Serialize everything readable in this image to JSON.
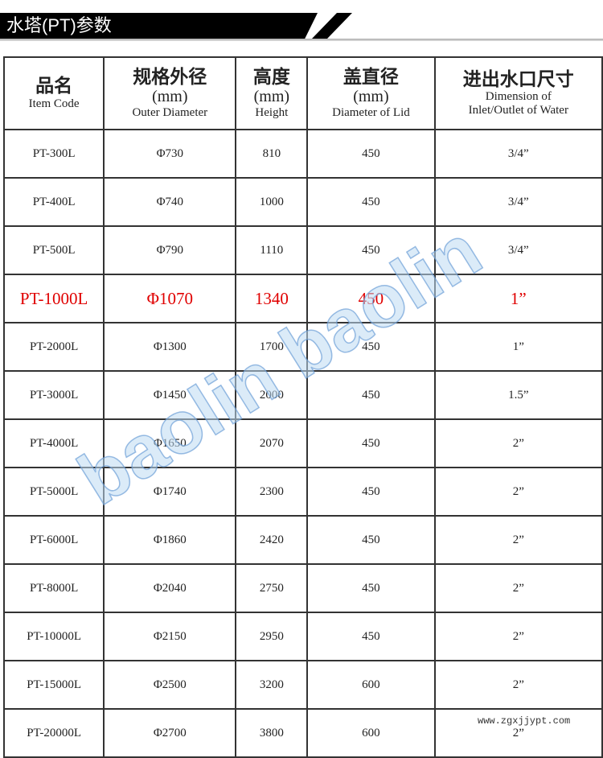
{
  "title": "水塔(PT)参数",
  "headers": [
    {
      "cn": "品名",
      "mm": "",
      "en": "Item Code"
    },
    {
      "cn": "规格外径",
      "mm": "(mm)",
      "en": "Outer Diameter"
    },
    {
      "cn": "高度",
      "mm": "(mm)",
      "en": "Height"
    },
    {
      "cn": "盖直径",
      "mm": "(mm)",
      "en": "Diameter of Lid"
    },
    {
      "cn": "进出水口尺寸",
      "mm": "Dimension of",
      "en": "Inlet/Outlet of Water"
    }
  ],
  "rows": [
    [
      "PT-300L",
      "Φ730",
      "810",
      "450",
      "3/4”"
    ],
    [
      "PT-400L",
      "Φ740",
      "1000",
      "450",
      "3/4”"
    ],
    [
      "PT-500L",
      "Φ790",
      "1110",
      "450",
      "3/4”"
    ],
    [
      "PT-1000L",
      "Φ1070",
      "1340",
      "450",
      "1”"
    ],
    [
      "PT-2000L",
      "Φ1300",
      "1700",
      "450",
      "1”"
    ],
    [
      "PT-3000L",
      "Φ1450",
      "2000",
      "450",
      "1.5”"
    ],
    [
      "PT-4000L",
      "Φ1650",
      "2070",
      "450",
      "2”"
    ],
    [
      "PT-5000L",
      "Φ1740",
      "2300",
      "450",
      "2”"
    ],
    [
      "PT-6000L",
      "Φ1860",
      "2420",
      "450",
      "2”"
    ],
    [
      "PT-8000L",
      "Φ2040",
      "2750",
      "450",
      "2”"
    ],
    [
      "PT-10000L",
      "Φ2150",
      "2950",
      "450",
      "2”"
    ],
    [
      "PT-15000L",
      "Φ2500",
      "3200",
      "600",
      "2”"
    ],
    [
      "PT-20000L",
      "Φ2700",
      "3800",
      "600",
      "2”"
    ]
  ],
  "highlight_row": "PT-1000L",
  "highlight_color": "#e00000",
  "watermark": "baolin baolin",
  "site_watermark": "www.zgxjjypt.com"
}
